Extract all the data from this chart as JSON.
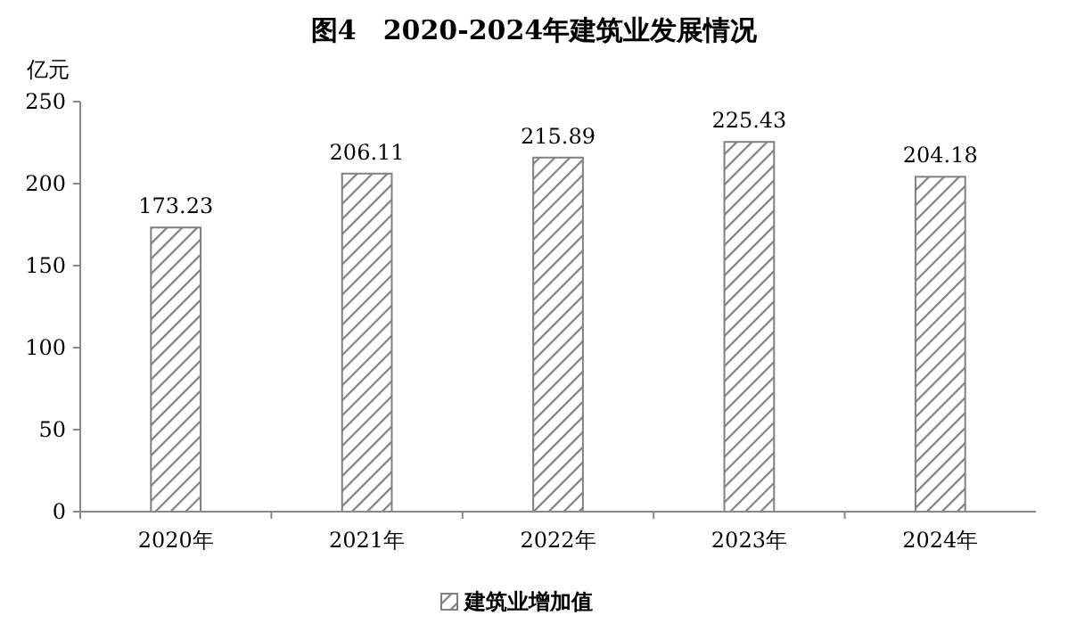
{
  "chart_data": {
    "type": "bar",
    "title": "图4　2020-2024年建筑业发展情况",
    "ylabel": "亿元",
    "categories": [
      "2020年",
      "2021年",
      "2022年",
      "2023年",
      "2024年"
    ],
    "series": [
      {
        "name": "建筑业增加值",
        "color": "#808080",
        "values": [
          173.23,
          206.11,
          215.89,
          225.43,
          204.18
        ]
      }
    ],
    "ylim": [
      0,
      250
    ],
    "yticks": [
      0,
      50,
      100,
      150,
      200,
      250
    ],
    "grid": false,
    "legend": "bottom",
    "data_labels": true
  }
}
